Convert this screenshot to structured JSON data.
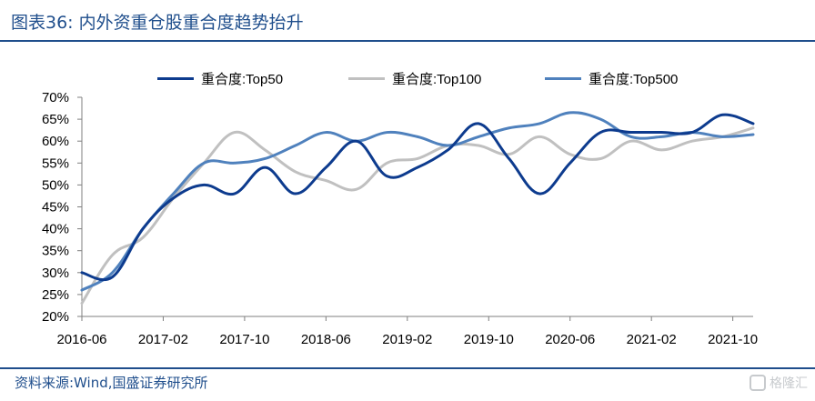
{
  "header": {
    "title": "图表36:  内外资重仓股重合度趋势抬升"
  },
  "footer": {
    "source": "资料来源:Wind,国盛证券研究所",
    "watermark": "格隆汇"
  },
  "chart_data": {
    "type": "line",
    "title": "",
    "xlabel": "",
    "ylabel": "",
    "ylim": [
      20,
      70
    ],
    "y_ticks": [
      "20%",
      "25%",
      "30%",
      "35%",
      "40%",
      "45%",
      "50%",
      "55%",
      "60%",
      "65%",
      "70%"
    ],
    "x_tick_labels": [
      "2016-06",
      "2017-02",
      "2017-10",
      "2018-06",
      "2019-02",
      "2019-10",
      "2020-06",
      "2021-02",
      "2021-10"
    ],
    "x_range": [
      "2016-06",
      "2021-12"
    ],
    "legend_position": "top",
    "grid": false,
    "x": [
      "2016-06",
      "2016-09",
      "2016-12",
      "2017-03",
      "2017-06",
      "2017-09",
      "2017-12",
      "2018-03",
      "2018-06",
      "2018-09",
      "2018-12",
      "2019-03",
      "2019-06",
      "2019-09",
      "2019-12",
      "2020-03",
      "2020-06",
      "2020-09",
      "2020-12",
      "2021-03",
      "2021-06",
      "2021-09",
      "2021-12"
    ],
    "series": [
      {
        "name": "重合度:Top50",
        "color": "#0d3b8e",
        "values": [
          30,
          29,
          40,
          47,
          50,
          48,
          54,
          48,
          54,
          60,
          52,
          54,
          58,
          64,
          56,
          48,
          55,
          62,
          62,
          62,
          62,
          66,
          64
        ]
      },
      {
        "name": "重合度:Top100",
        "color": "#c0c0c0",
        "values": [
          23,
          34,
          38,
          47,
          55,
          62,
          58,
          53,
          51,
          49,
          55,
          56,
          59,
          59,
          57,
          61,
          57,
          56,
          60,
          58,
          60,
          61,
          63
        ]
      },
      {
        "name": "重合度:Top500",
        "color": "#4f81bd",
        "values": [
          26,
          30,
          40,
          48,
          55,
          55,
          56,
          59,
          62,
          60,
          62,
          61,
          59,
          61,
          63,
          64,
          66.5,
          65,
          61,
          61,
          62,
          61,
          61.5
        ]
      }
    ]
  }
}
